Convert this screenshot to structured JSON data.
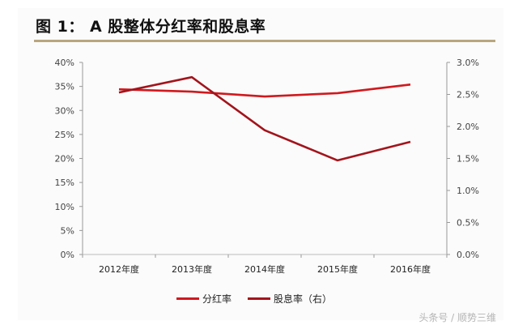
{
  "header": {
    "title": "图 1： A 股整体分红率和股息率"
  },
  "chart_data": {
    "type": "line",
    "title": "图 1： A 股整体分红率和股息率",
    "categories": [
      "2012年度",
      "2013年度",
      "2014年度",
      "2015年度",
      "2016年度"
    ],
    "series": [
      {
        "name": "分红率",
        "axis": "left",
        "color": "#d0191e",
        "values": [
          34.4,
          33.9,
          32.9,
          33.6,
          35.4
        ]
      },
      {
        "name": "股息率（右）",
        "axis": "right",
        "color": "#a3141c",
        "values": [
          2.53,
          2.77,
          1.94,
          1.47,
          1.76
        ]
      }
    ],
    "xlabel": "",
    "ylabel": "",
    "ylim": [
      0,
      40
    ],
    "y2lim": [
      0,
      3.0
    ],
    "yticks": [
      "0%",
      "5%",
      "10%",
      "15%",
      "20%",
      "25%",
      "30%",
      "35%",
      "40%"
    ],
    "y2ticks": [
      "0.0%",
      "0.5%",
      "1.0%",
      "1.5%",
      "2.0%",
      "2.5%",
      "3.0%"
    ],
    "grid": false,
    "legend_position": "bottom"
  },
  "legend": {
    "items": [
      {
        "label": "分红率",
        "color": "#d0191e"
      },
      {
        "label": "股息率（右）",
        "color": "#a3141c"
      }
    ]
  },
  "watermark": "头条号 / 顺势三维"
}
